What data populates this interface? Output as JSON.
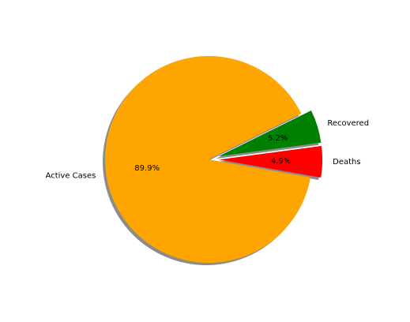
{
  "chart_data": {
    "type": "pie",
    "title": "",
    "slices": [
      {
        "label": "Active Cases",
        "value": 89.9,
        "pct_text": "89.9%",
        "color": "#ffa500",
        "exploded": false
      },
      {
        "label": "Deaths",
        "value": 4.9,
        "pct_text": "4.9%",
        "color": "#ff0000",
        "exploded": true
      },
      {
        "label": "Recovered",
        "value": 5.2,
        "pct_text": "5.2%",
        "color": "#008000",
        "exploded": true
      }
    ],
    "shadow": true,
    "legend": "none"
  }
}
